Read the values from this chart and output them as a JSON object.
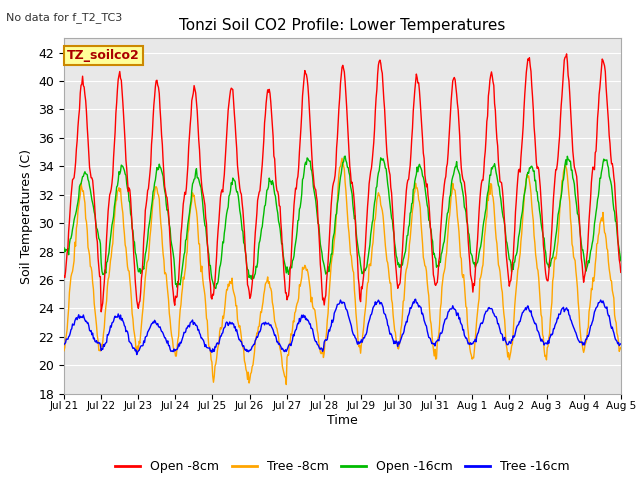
{
  "title": "Tonzi Soil CO2 Profile: Lower Temperatures",
  "subtitle": "No data for f_T2_TC3",
  "ylabel": "Soil Temperatures (C)",
  "xlabel": "Time",
  "ylim": [
    18,
    43
  ],
  "yticks": [
    18,
    20,
    22,
    24,
    26,
    28,
    30,
    32,
    34,
    36,
    38,
    40,
    42
  ],
  "bg_color": "#e8e8e8",
  "plot_bg": "#e8e8e8",
  "legend_labels": [
    "Open -8cm",
    "Tree -8cm",
    "Open -16cm",
    "Tree -16cm"
  ],
  "legend_colors": [
    "#ff0000",
    "#ffa500",
    "#00bb00",
    "#0000ff"
  ],
  "inset_label": "TZ_soilco2",
  "inset_bg": "#ffff99",
  "inset_border": "#cc8800",
  "date_labels": [
    "Jul 21",
    "Jul 22",
    "Jul 23",
    "Jul 24",
    "Jul 25",
    "Jul 26",
    "Jul 27",
    "Jul 28",
    "Jul 29",
    "Jul 30",
    "Jul 31",
    "Aug 1",
    "Aug 2",
    "Aug 3",
    "Aug 4",
    "Aug 5"
  ],
  "n_days": 15,
  "pts_per_day": 48,
  "open_8cm_max": [
    40.0,
    40.5,
    40.0,
    39.5,
    39.5,
    39.5,
    40.7,
    41.0,
    41.5,
    40.3,
    40.3,
    40.5,
    41.7,
    41.8,
    41.5
  ],
  "open_8cm_min": [
    26.0,
    24.0,
    24.0,
    24.5,
    25.0,
    24.8,
    24.5,
    24.5,
    25.5,
    25.5,
    25.5,
    25.5,
    26.0,
    26.0,
    26.5
  ],
  "tree_8cm_max": [
    32.5,
    32.5,
    32.5,
    32.0,
    26.0,
    26.0,
    27.0,
    34.5,
    32.0,
    32.5,
    32.5,
    32.5,
    33.5,
    34.0,
    30.5
  ],
  "tree_8cm_min": [
    21.0,
    21.0,
    21.0,
    20.5,
    19.0,
    19.0,
    20.5,
    21.0,
    21.5,
    21.0,
    20.5,
    20.5,
    20.5,
    21.0,
    21.0
  ],
  "open_16cm_max": [
    33.5,
    34.0,
    34.0,
    33.5,
    33.0,
    33.0,
    34.5,
    34.5,
    34.5,
    34.0,
    34.0,
    34.0,
    34.0,
    34.5,
    34.5
  ],
  "open_16cm_min": [
    28.0,
    26.5,
    26.5,
    25.5,
    25.5,
    26.0,
    26.5,
    26.5,
    26.5,
    27.0,
    27.0,
    27.0,
    27.0,
    27.0,
    27.0
  ],
  "tree_16cm_max": [
    23.5,
    23.5,
    23.0,
    23.0,
    23.0,
    23.0,
    23.5,
    24.5,
    24.5,
    24.5,
    24.0,
    24.0,
    24.0,
    24.0,
    24.5
  ],
  "tree_16cm_min": [
    21.5,
    21.0,
    21.0,
    21.0,
    21.0,
    21.0,
    21.0,
    21.5,
    21.5,
    21.5,
    21.5,
    21.5,
    21.5,
    21.5,
    21.5
  ]
}
